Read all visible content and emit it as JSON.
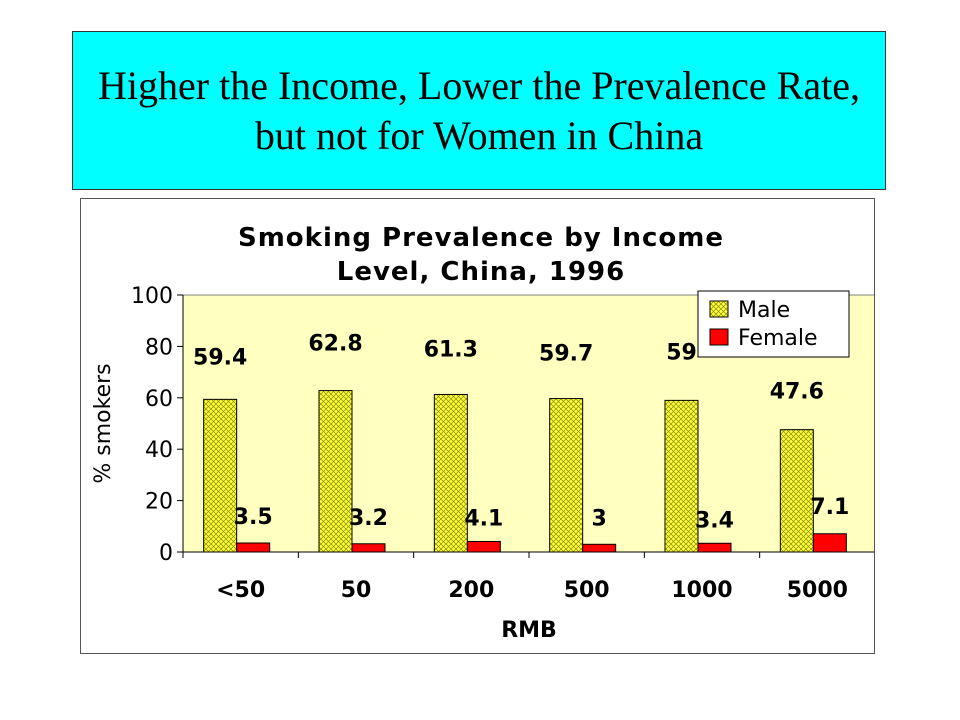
{
  "slide": {
    "title": "Higher the Income, Lower the Prevalence Rate, but not for Women in China"
  },
  "colors": {
    "title_bg": "#00ffff",
    "plot_bg": "#ffffc0",
    "male_bar": "#ffff40",
    "female_bar": "#ff0000"
  },
  "chart_data": {
    "type": "bar",
    "title_lines": [
      "Smoking Prevalence by Income",
      "Level, China, 1996"
    ],
    "xlabel": "RMB",
    "ylabel": "% smokers",
    "categories": [
      "<50",
      "50",
      "200",
      "500",
      "1000",
      "5000"
    ],
    "ylim": [
      0,
      100
    ],
    "yticks": [
      0,
      20,
      40,
      60,
      80,
      100
    ],
    "series": [
      {
        "name": "Male",
        "values": [
          59.4,
          62.8,
          61.3,
          59.7,
          59,
          47.6
        ],
        "labels": [
          "59.4",
          "62.8",
          "61.3",
          "59.7",
          "59",
          "47.6"
        ]
      },
      {
        "name": "Female",
        "values": [
          3.5,
          3.2,
          4.1,
          3,
          3.4,
          7.1
        ],
        "labels": [
          "3.5",
          "3.2",
          "4.1",
          "3",
          "3.4",
          "7.1"
        ]
      }
    ],
    "legend_position": "top-right",
    "grid": false
  }
}
